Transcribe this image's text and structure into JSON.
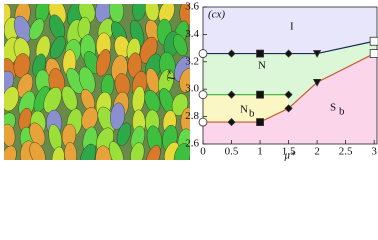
{
  "chart_data": {
    "type": "line",
    "panel_label": "(cx)",
    "xlabel": "μ*",
    "ylabel": "T*",
    "xlim": [
      0,
      3.05
    ],
    "ylim": [
      2.6,
      3.6
    ],
    "xticks": [
      0,
      0.5,
      1,
      1.5,
      2,
      2.5,
      3
    ],
    "yticks": [
      {
        "value": 2.6,
        "label": "2.6"
      },
      {
        "value": 2.8,
        "label": "2.8"
      },
      {
        "value": 3.0,
        "label": "3.0"
      },
      {
        "value": 3.2,
        "label": "3.2"
      },
      {
        "value": 3.4,
        "label": "3.4"
      },
      {
        "value": 3.6,
        "label": "3.6"
      }
    ],
    "annotations": [
      "I",
      "N",
      "N",
      "S"
    ],
    "annotation_subscripts": [
      "b",
      "b"
    ],
    "region_colors": [
      "#e8e6fa",
      "#dcf7d8",
      "#fbf7c4",
      "#fbd6ea"
    ],
    "series": [
      {
        "color": "#1a2a5a",
        "x": [
          0,
          0.5,
          1,
          1.5,
          2,
          3
        ],
        "values": [
          3.26,
          3.26,
          3.26,
          3.26,
          3.26,
          3.35
        ],
        "markers": [
          "open-circle",
          "diamond",
          "square",
          "diamond",
          "triangle-down",
          "open-square"
        ]
      },
      {
        "color": "#3caa3c",
        "x": [
          0,
          0.5,
          1,
          1.5
        ],
        "values": [
          2.96,
          2.96,
          2.96,
          2.96
        ],
        "markers": [
          "open-circle",
          "diamond",
          "square",
          "diamond"
        ]
      },
      {
        "color": "#c85a28",
        "x": [
          0,
          0.5,
          1,
          1.5,
          2,
          3
        ],
        "values": [
          2.76,
          2.76,
          2.76,
          2.86,
          3.05,
          3.26
        ],
        "markers": [
          "open-circle",
          "diamond",
          "square",
          "diamond",
          "triangle-down",
          "open-square"
        ]
      }
    ]
  }
}
